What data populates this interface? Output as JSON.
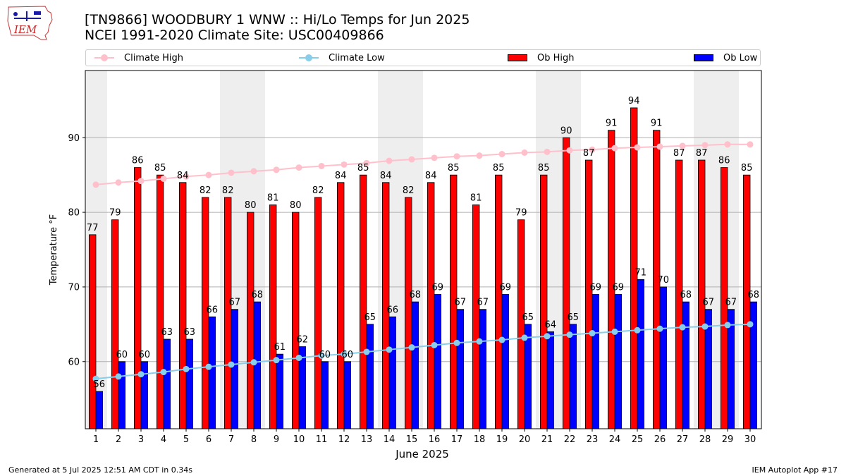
{
  "header": {
    "title_line1": "[TN9866] WOODBURY 1 WNW :: Hi/Lo Temps for Jun 2025",
    "title_line2": "NCEI 1991-2020 Climate Site: USC00409866",
    "logo_text": "IEM"
  },
  "legend": [
    {
      "label": "Climate High",
      "color": "#ffc0cb",
      "kind": "line"
    },
    {
      "label": "Climate Low",
      "color": "#87ceeb",
      "kind": "line"
    },
    {
      "label": "Ob High",
      "color": "#ff0000",
      "kind": "bar"
    },
    {
      "label": "Ob Low",
      "color": "#0000ff",
      "kind": "bar"
    }
  ],
  "footer": {
    "left": "Generated at 5 Jul 2025 12:51 AM CDT in 0.34s",
    "right": "IEM Autoplot App #17"
  },
  "chart_data": {
    "type": "bar",
    "title": "[TN9866] WOODBURY 1 WNW :: Hi/Lo Temps for Jun 2025",
    "xlabel": "June 2025",
    "ylabel": "Temperature °F",
    "ylim": [
      51,
      99
    ],
    "yticks": [
      60,
      70,
      80,
      90
    ],
    "grid": true,
    "legend_position": "top",
    "weekend_shading_days": [
      1,
      7,
      8,
      14,
      15,
      21,
      22,
      28,
      29
    ],
    "categories": [
      "1",
      "2",
      "3",
      "4",
      "5",
      "6",
      "7",
      "8",
      "9",
      "10",
      "11",
      "12",
      "13",
      "14",
      "15",
      "16",
      "17",
      "18",
      "19",
      "20",
      "21",
      "22",
      "23",
      "24",
      "25",
      "26",
      "27",
      "28",
      "29",
      "30"
    ],
    "series": [
      {
        "name": "Ob High",
        "kind": "bar",
        "color": "#ff0000",
        "values": [
          77,
          79,
          86,
          85,
          84,
          82,
          82,
          80,
          81,
          80,
          82,
          84,
          85,
          84,
          82,
          84,
          85,
          81,
          85,
          79,
          85,
          90,
          87,
          91,
          94,
          91,
          87,
          87,
          86,
          85
        ]
      },
      {
        "name": "Ob Low",
        "kind": "bar",
        "color": "#0000ff",
        "values": [
          56,
          60,
          60,
          63,
          63,
          66,
          67,
          68,
          61,
          62,
          60,
          60,
          65,
          66,
          68,
          69,
          67,
          67,
          69,
          65,
          64,
          65,
          69,
          69,
          71,
          70,
          68,
          67,
          67,
          68
        ]
      },
      {
        "name": "Climate High",
        "kind": "line",
        "color": "#ffc0cb",
        "values": [
          83.7,
          84.0,
          84.2,
          84.5,
          84.8,
          85.0,
          85.3,
          85.5,
          85.7,
          86.0,
          86.2,
          86.4,
          86.6,
          86.9,
          87.1,
          87.3,
          87.5,
          87.6,
          87.8,
          88.0,
          88.1,
          88.3,
          88.4,
          88.6,
          88.7,
          88.8,
          88.9,
          89.0,
          89.1,
          89.1
        ]
      },
      {
        "name": "Climate Low",
        "kind": "line",
        "color": "#87ceeb",
        "values": [
          57.7,
          58.0,
          58.3,
          58.6,
          59.0,
          59.3,
          59.6,
          59.9,
          60.2,
          60.5,
          60.8,
          61.0,
          61.3,
          61.6,
          61.9,
          62.2,
          62.5,
          62.7,
          62.9,
          63.2,
          63.4,
          63.6,
          63.8,
          64.0,
          64.2,
          64.4,
          64.6,
          64.7,
          64.9,
          65.0
        ]
      }
    ]
  }
}
